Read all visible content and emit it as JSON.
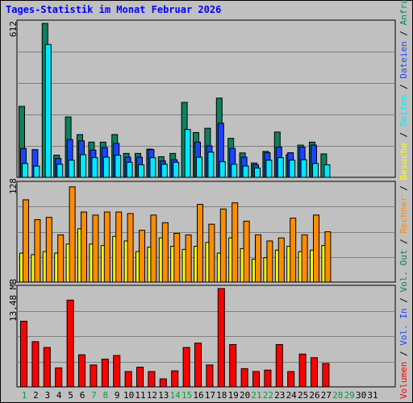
{
  "title": "Tages-Statistik im Monat Februar 2026",
  "colors": {
    "anfragen": "#0c8060",
    "dateien": "#1a44ff",
    "seiten": "#00e8ff",
    "besuche": "#ffff00",
    "rechner": "#ff8c00",
    "volumen": "#ff0000",
    "weekend_label": "#00a040",
    "weekday_label": "#000000"
  },
  "chart_data": [
    {
      "type": "bar",
      "panel": "top",
      "y_max_label": "612",
      "ylim": [
        0,
        612
      ],
      "categories": [
        "1",
        "2",
        "3",
        "4",
        "5",
        "6",
        "7",
        "8",
        "9",
        "10",
        "11",
        "12",
        "13",
        "14",
        "15",
        "16",
        "17",
        "18",
        "19",
        "20",
        "21",
        "22",
        "23",
        "24",
        "25",
        "26",
        "27",
        "28",
        "29",
        "30",
        "31"
      ],
      "series": [
        {
          "name": "Anfragen",
          "values": [
            282,
            0,
            612,
            88,
            240,
            170,
            140,
            140,
            170,
            95,
            95,
            112,
            82,
            95,
            298,
            178,
            195,
            315,
            155,
            97,
            57,
            103,
            180,
            90,
            128,
            140,
            93,
            0,
            0,
            0,
            0
          ]
        },
        {
          "name": "Dateien",
          "values": [
            115,
            110,
            0,
            75,
            150,
            145,
            108,
            118,
            135,
            80,
            80,
            110,
            65,
            70,
            0,
            140,
            125,
            215,
            115,
            80,
            50,
            98,
            120,
            98,
            120,
            128,
            0,
            0,
            0,
            0,
            0
          ]
        },
        {
          "name": "Seiten",
          "values": [
            55,
            45,
            528,
            52,
            68,
            90,
            78,
            80,
            88,
            60,
            50,
            78,
            52,
            60,
            190,
            80,
            100,
            62,
            52,
            45,
            37,
            68,
            78,
            68,
            70,
            55,
            50,
            0,
            0,
            0,
            0
          ]
        }
      ]
    },
    {
      "type": "bar",
      "panel": "middle",
      "y_max_label": "128",
      "ylim": [
        0,
        128
      ],
      "series": [
        {
          "name": "Besuche",
          "values": [
            38,
            36,
            40,
            38,
            50,
            70,
            50,
            48,
            60,
            54,
            40,
            46,
            58,
            47,
            43,
            47,
            52,
            38,
            58,
            44,
            30,
            32,
            42,
            47,
            40,
            42,
            48,
            0,
            0,
            0,
            0
          ]
        },
        {
          "name": "Rechner",
          "values": [
            108,
            82,
            85,
            62,
            125,
            92,
            88,
            92,
            92,
            90,
            68,
            88,
            78,
            64,
            62,
            102,
            76,
            96,
            104,
            80,
            62,
            54,
            58,
            84,
            62,
            88,
            66,
            0,
            0,
            0,
            0
          ]
        }
      ]
    },
    {
      "type": "bar",
      "panel": "bottom",
      "y_max_label": "13.48 MB",
      "ylim": [
        0,
        13.48
      ],
      "series": [
        {
          "name": "Volumen",
          "values": [
            9.0,
            6.2,
            5.4,
            2.6,
            11.9,
            4.4,
            3.0,
            3.8,
            4.3,
            2.1,
            2.7,
            2.1,
            1.1,
            2.2,
            5.4,
            6.0,
            3.0,
            13.48,
            5.8,
            2.5,
            2.1,
            2.3,
            5.8,
            2.1,
            4.5,
            4.0,
            3.2,
            0,
            0,
            0,
            0
          ]
        }
      ]
    }
  ],
  "x_labels": [
    "1",
    "2",
    "3",
    "4",
    "5",
    "6",
    "7",
    "8",
    "9",
    "10",
    "11",
    "12",
    "13",
    "14",
    "15",
    "16",
    "17",
    "18",
    "19",
    "20",
    "21",
    "22",
    "23",
    "24",
    "25",
    "26",
    "27",
    "28",
    "29",
    "30",
    "31"
  ],
  "weekend_days": [
    "1",
    "7",
    "8",
    "14",
    "15",
    "21",
    "22",
    "28",
    "29"
  ],
  "right_legend": [
    {
      "text": "Volumen",
      "color": "#ff0000"
    },
    {
      "text": " / ",
      "color": "#000000"
    },
    {
      "text": "Vol. In",
      "color": "#1a44ff"
    },
    {
      "text": " / ",
      "color": "#000000"
    },
    {
      "text": "Vol. Out",
      "color": "#0c8060"
    },
    {
      "text": " / ",
      "color": "#000000"
    },
    {
      "text": "Rechner",
      "color": "#ff8c00"
    },
    {
      "text": " / ",
      "color": "#000000"
    },
    {
      "text": "Besuche",
      "color": "#ffff00"
    },
    {
      "text": " / ",
      "color": "#000000"
    },
    {
      "text": "Seiten",
      "color": "#00e8ff"
    },
    {
      "text": " / ",
      "color": "#000000"
    },
    {
      "text": "Dateien",
      "color": "#1a44ff"
    },
    {
      "text": " / ",
      "color": "#000000"
    },
    {
      "text": "Anfragen",
      "color": "#0c8060"
    }
  ]
}
